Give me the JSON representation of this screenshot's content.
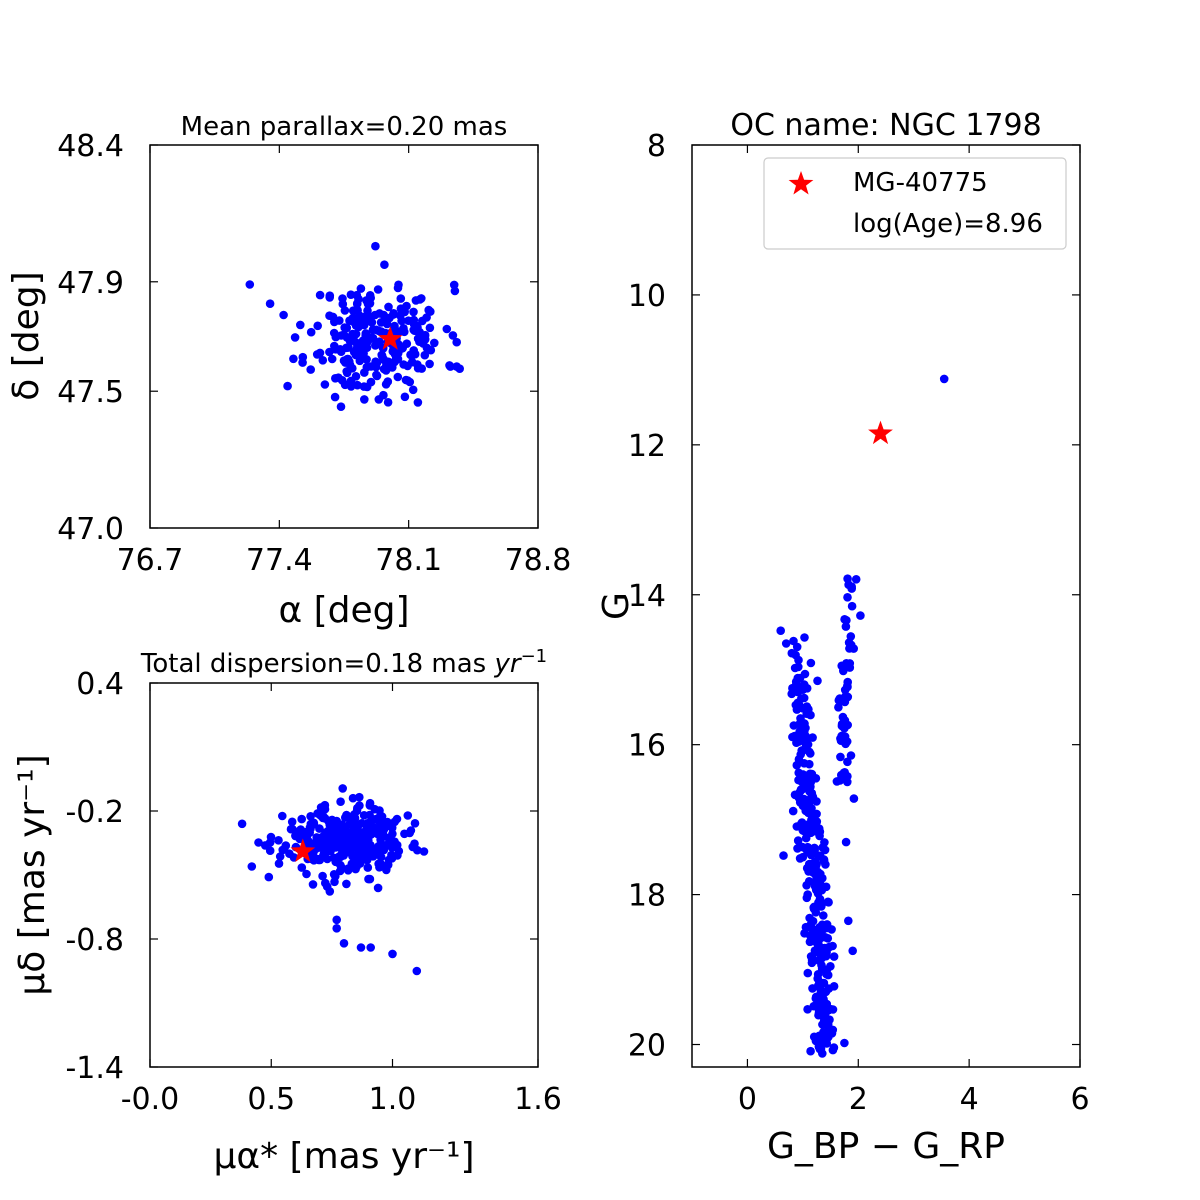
{
  "chart_data": [
    {
      "id": "sky",
      "type": "scatter",
      "title": "Mean parallax=0.20 mas",
      "xlabel": "α [deg]",
      "ylabel": "δ [deg]",
      "xlim": [
        76.7,
        78.8
      ],
      "ylim": [
        47.0,
        48.4
      ],
      "xticks": [
        76.7,
        77.4,
        78.1,
        78.8
      ],
      "xtick_labels": [
        "76.7",
        "77.4",
        "78.1",
        "78.8"
      ],
      "yticks": [
        47.0,
        47.5,
        47.9,
        48.4
      ],
      "ytick_labels": [
        "47.0",
        "47.5",
        "47.9",
        "48.4"
      ],
      "cluster": {
        "center": [
          77.93,
          47.69
        ],
        "spread": [
          0.18,
          0.1
        ],
        "count": 260,
        "seed": 11
      },
      "points": [
        [
          77.24,
          47.89
        ],
        [
          77.92,
          48.03
        ],
        [
          78.36,
          47.59
        ],
        [
          77.86,
          47.47
        ],
        [
          77.35,
          47.82
        ],
        [
          77.62,
          47.64
        ],
        [
          77.74,
          47.54
        ],
        [
          78.22,
          47.65
        ]
      ],
      "target": {
        "x": 78.0,
        "y": 47.69
      }
    },
    {
      "id": "pm",
      "type": "scatter",
      "title": "Total dispersion=0.18 mas",
      "title_unit": "yr",
      "title_exp": "−1",
      "xlabel": "μα* [mas yr⁻¹]",
      "ylabel": "μδ [mas yr⁻¹]",
      "xlim": [
        -0.0,
        1.6
      ],
      "ylim": [
        -1.4,
        0.4
      ],
      "xticks": [
        0.0,
        0.5,
        1.0,
        1.6
      ],
      "xtick_labels": [
        "-0.0",
        "0.5",
        "1.0",
        "1.6"
      ],
      "yticks": [
        -1.4,
        -0.8,
        -0.2,
        0.4
      ],
      "ytick_labels": [
        "-1.4",
        "-0.8",
        "-0.2",
        "0.4"
      ],
      "cluster": {
        "center": [
          0.8,
          -0.34
        ],
        "spread": [
          0.12,
          0.08
        ],
        "count": 340,
        "seed": 23
      },
      "points": [
        [
          0.38,
          -0.26
        ],
        [
          0.42,
          -0.46
        ],
        [
          0.49,
          -0.51
        ],
        [
          0.77,
          -0.75
        ],
        [
          0.8,
          -0.82
        ],
        [
          0.87,
          -0.84
        ],
        [
          0.91,
          -0.84
        ],
        [
          1.0,
          -0.87
        ],
        [
          1.1,
          -0.95
        ],
        [
          1.13,
          -0.39
        ],
        [
          0.77,
          -0.71
        ]
      ],
      "target": {
        "x": 0.63,
        "y": -0.39
      }
    },
    {
      "id": "cmd",
      "type": "scatter",
      "title": "OC name: NGC 1798",
      "xlabel": "G_BP − G_RP",
      "ylabel": "G",
      "xlim": [
        -1,
        6
      ],
      "ylim": [
        20.3,
        8.0
      ],
      "xticks": [
        0,
        2,
        4,
        6
      ],
      "xtick_labels": [
        "0",
        "2",
        "4",
        "6"
      ],
      "yticks": [
        8,
        10,
        12,
        14,
        16,
        18,
        20
      ],
      "ytick_labels": [
        "8",
        "10",
        "12",
        "14",
        "16",
        "18",
        "20"
      ],
      "main_sequence": [
        [
          14.5,
          0.9
        ],
        [
          15.5,
          0.95
        ],
        [
          16.5,
          1.05
        ],
        [
          17.5,
          1.18
        ],
        [
          18.5,
          1.27
        ],
        [
          19.5,
          1.35
        ],
        [
          20.1,
          1.4
        ]
      ],
      "giant_branch": [
        [
          13.4,
          1.88
        ],
        [
          14.5,
          1.85
        ],
        [
          15.5,
          1.75
        ],
        [
          16.5,
          1.7
        ]
      ],
      "cluster": {
        "ms_count": 330,
        "gb_count": 55,
        "seed": 37
      },
      "points": [
        [
          3.55,
          11.12
        ],
        [
          0.6,
          14.48
        ],
        [
          0.7,
          14.65
        ],
        [
          0.8,
          14.78
        ],
        [
          0.88,
          15.16
        ],
        [
          0.65,
          17.48
        ],
        [
          1.92,
          16.72
        ],
        [
          1.78,
          17.3
        ],
        [
          1.82,
          18.35
        ],
        [
          1.9,
          18.75
        ],
        [
          1.75,
          19.98
        ],
        [
          1.35,
          20.12
        ]
      ],
      "target": {
        "x": 2.4,
        "y": 11.85
      },
      "legend": {
        "label": "MG-40775",
        "extra": "log(Age)=8.96"
      }
    }
  ]
}
